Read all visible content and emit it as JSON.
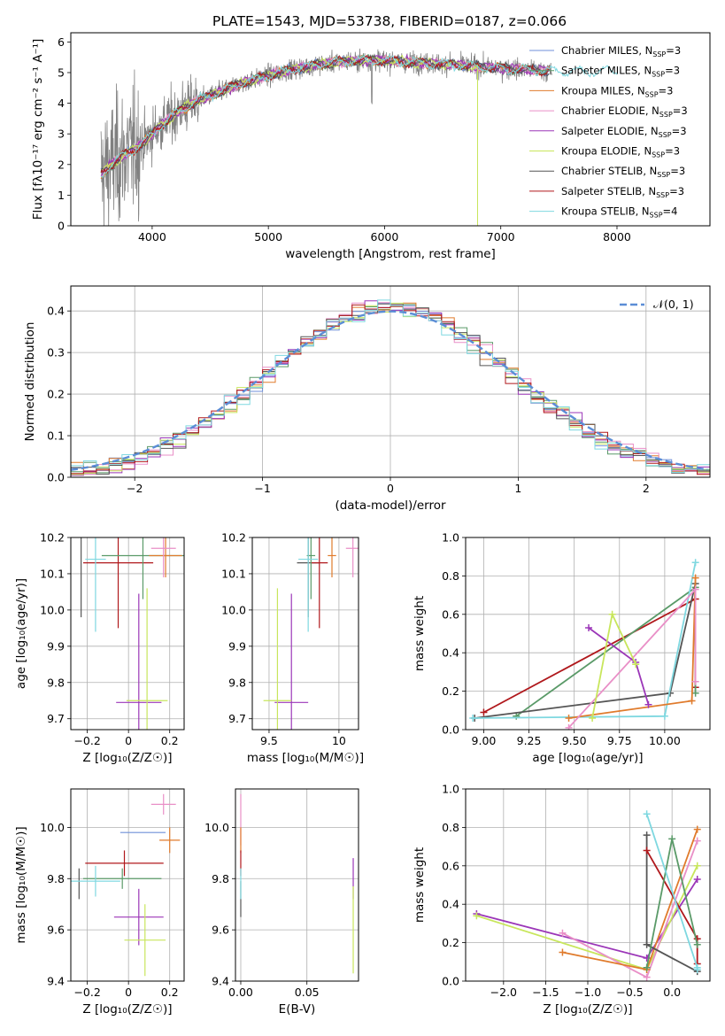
{
  "figure_title": "PLATE=1543, MJD=53738, FIBERID=0187, z=0.066",
  "colors": {
    "Chabrier MILES": "#6f8fd8",
    "Salpeter MILES": "#5a9a68",
    "Kroupa MILES": "#e07b2c",
    "Chabrier ELODIE": "#e98fc7",
    "Salpeter ELODIE": "#9b36b8",
    "Kroupa ELODIE": "#c8e65c",
    "Chabrier STELIB": "#555555",
    "Salpeter STELIB": "#b0181c",
    "Kroupa STELIB": "#7fd8e0",
    "data": "#808080",
    "normal": "#5b8dd6"
  },
  "chart_data": [
    {
      "type": "line",
      "name": "spectrum",
      "xlabel": "wavelength [Angstrom, rest frame]",
      "ylabel": "Flux [fλ10⁻¹⁷ erg cm⁻² s⁻¹ A⁻¹]",
      "xlim": [
        3300,
        8800
      ],
      "ylim": [
        0,
        6.3
      ],
      "xticks": [
        4000,
        5000,
        6000,
        7000,
        8000
      ],
      "yticks": [
        0,
        1,
        2,
        3,
        4,
        5,
        6
      ],
      "legend_position": "right",
      "legend": [
        {
          "model": "Chabrier MILES",
          "label": "Chabrier MILES, N",
          "sub": "SSP",
          "tail": "=3"
        },
        {
          "model": "Salpeter MILES",
          "label": "Salpeter MILES, N",
          "sub": "SSP",
          "tail": "=3"
        },
        {
          "model": "Kroupa MILES",
          "label": "Kroupa MILES, N",
          "sub": "SSP",
          "tail": "=3"
        },
        {
          "model": "Chabrier ELODIE",
          "label": "Chabrier ELODIE, N",
          "sub": "SSP",
          "tail": "=3"
        },
        {
          "model": "Salpeter ELODIE",
          "label": "Salpeter ELODIE, N",
          "sub": "SSP",
          "tail": "=3"
        },
        {
          "model": "Kroupa ELODIE",
          "label": "Kroupa ELODIE, N",
          "sub": "SSP",
          "tail": "=3"
        },
        {
          "model": "Chabrier STELIB",
          "label": "Chabrier STELIB, N",
          "sub": "SSP",
          "tail": "=3"
        },
        {
          "model": "Salpeter STELIB",
          "label": "Salpeter STELIB, N",
          "sub": "SSP",
          "tail": "=3"
        },
        {
          "model": "Kroupa STELIB",
          "label": "Kroupa STELIB, N",
          "sub": "SSP",
          "tail": "=4"
        }
      ],
      "continuum": [
        [
          3560,
          1.7
        ],
        [
          3650,
          2.0
        ],
        [
          3750,
          2.3
        ],
        [
          3850,
          2.5
        ],
        [
          3950,
          2.8
        ],
        [
          4050,
          3.2
        ],
        [
          4150,
          3.5
        ],
        [
          4250,
          3.8
        ],
        [
          4400,
          4.1
        ],
        [
          4600,
          4.4
        ],
        [
          4800,
          4.7
        ],
        [
          5000,
          4.9
        ],
        [
          5200,
          5.1
        ],
        [
          5400,
          5.25
        ],
        [
          5600,
          5.35
        ],
        [
          5800,
          5.4
        ],
        [
          6000,
          5.4
        ],
        [
          6200,
          5.35
        ],
        [
          6400,
          5.3
        ],
        [
          6600,
          5.25
        ],
        [
          6800,
          5.2
        ],
        [
          7000,
          5.15
        ],
        [
          7200,
          5.1
        ],
        [
          7400,
          5.05
        ]
      ],
      "model_extent": {
        "Kroupa ELODIE": 6800,
        "Salpeter STELIB": 7420,
        "Kroupa MILES": 7420,
        "Kroupa STELIB": 8000
      }
    },
    {
      "type": "step",
      "name": "residual-distribution",
      "xlabel": "(data-model)/error",
      "ylabel": "Normed distribution",
      "xlim": [
        -2.5,
        2.5
      ],
      "ylim": [
        0,
        0.46
      ],
      "xticks": [
        -2,
        -1,
        0,
        1,
        2
      ],
      "xtick_labels": [
        "−2",
        "−1",
        "0",
        "1",
        "2"
      ],
      "yticks": [
        0.0,
        0.1,
        0.2,
        0.3,
        0.4
      ],
      "bin_width": 0.1,
      "legend_label": "𝒩(0, 1)",
      "legend_position": "top-right"
    },
    {
      "type": "errorbar",
      "name": "Z-vs-age",
      "xlabel": "Z [log₁₀(Z/Z☉)]",
      "ylabel": "age  [log₁₀(age/yr)]",
      "xlim": [
        -0.28,
        0.27
      ],
      "ylim": [
        9.67,
        10.2
      ],
      "xticks": [
        -0.2,
        0.0,
        0.2
      ],
      "yticks": [
        9.7,
        9.8,
        9.9,
        10.0,
        10.1,
        10.2
      ],
      "points": [
        {
          "model": "Chabrier STELIB",
          "x": -0.23,
          "y": 10.13,
          "xerr": 0.0,
          "yerr": 0.15
        },
        {
          "model": "Salpeter STELIB",
          "x": -0.05,
          "y": 10.13,
          "xerr": 0.17,
          "yerr": 0.18
        },
        {
          "model": "Salpeter MILES",
          "x": 0.07,
          "y": 10.15,
          "xerr": 0.2,
          "yerr": 0.12
        },
        {
          "model": "Kroupa MILES",
          "x": 0.18,
          "y": 10.15,
          "xerr": 0.08,
          "yerr": 0.06
        },
        {
          "model": "Chabrier ELODIE",
          "x": 0.17,
          "y": 10.17,
          "xerr": 0.06,
          "yerr": 0.08
        },
        {
          "model": "Kroupa STELIB",
          "x": -0.16,
          "y": 10.14,
          "xerr": 0.05,
          "yerr": 0.2
        },
        {
          "model": "Salpeter ELODIE",
          "x": 0.05,
          "y": 9.745,
          "xerr": 0.11,
          "yerr": 0.3
        },
        {
          "model": "Kroupa ELODIE",
          "x": 0.09,
          "y": 9.75,
          "xerr": 0.1,
          "yerr": 0.31
        }
      ]
    },
    {
      "type": "errorbar",
      "name": "mass-vs-age",
      "xlabel": "mass [log₁₀(M/M☉)]",
      "ylabel": "",
      "xlim": [
        9.38,
        10.14
      ],
      "ylim": [
        9.67,
        10.2
      ],
      "xticks": [
        9.5,
        10.0
      ],
      "yticks": [
        9.7,
        9.8,
        9.9,
        10.0,
        10.1,
        10.2
      ],
      "points": [
        {
          "model": "Chabrier STELIB",
          "x": 9.78,
          "y": 10.13,
          "xerr": 0.08,
          "yerr": 0.15
        },
        {
          "model": "Salpeter STELIB",
          "x": 9.86,
          "y": 10.13,
          "xerr": 0.06,
          "yerr": 0.18
        },
        {
          "model": "Salpeter MILES",
          "x": 9.8,
          "y": 10.15,
          "xerr": 0.03,
          "yerr": 0.12
        },
        {
          "model": "Kroupa MILES",
          "x": 9.95,
          "y": 10.15,
          "xerr": 0.03,
          "yerr": 0.06
        },
        {
          "model": "Chabrier ELODIE",
          "x": 10.1,
          "y": 10.17,
          "xerr": 0.05,
          "yerr": 0.08
        },
        {
          "model": "Kroupa STELIB",
          "x": 9.78,
          "y": 10.14,
          "xerr": 0.07,
          "yerr": 0.2
        },
        {
          "model": "Salpeter ELODIE",
          "x": 9.66,
          "y": 9.745,
          "xerr": 0.12,
          "yerr": 0.3
        },
        {
          "model": "Kroupa ELODIE",
          "x": 9.56,
          "y": 9.75,
          "xerr": 0.1,
          "yerr": 0.31
        }
      ]
    },
    {
      "type": "line",
      "name": "age-vs-mass-weight",
      "xlabel": "age  [log₁₀(age/yr)]",
      "ylabel": "mass weight",
      "xlim": [
        8.9,
        10.25
      ],
      "ylim": [
        0,
        1
      ],
      "xticks": [
        9.0,
        9.25,
        9.5,
        9.75,
        10.0
      ],
      "xtick_labels": [
        "9.00",
        "9.25",
        "9.50",
        "9.75",
        "10.00"
      ],
      "yticks": [
        0.0,
        0.2,
        0.4,
        0.6,
        0.8,
        1.0
      ],
      "series": [
        {
          "model": "Salpeter STELIB",
          "x": [
            9.0,
            10.17,
            10.17
          ],
          "y": [
            0.09,
            0.68,
            0.22
          ]
        },
        {
          "model": "Salpeter MILES",
          "x": [
            9.18,
            10.17,
            10.17
          ],
          "y": [
            0.07,
            0.74,
            0.19
          ]
        },
        {
          "model": "Chabrier STELIB",
          "x": [
            8.95,
            10.03,
            10.17
          ],
          "y": [
            0.06,
            0.19,
            0.76
          ]
        },
        {
          "model": "Kroupa STELIB",
          "x": [
            8.94,
            10.0,
            10.17
          ],
          "y": [
            0.06,
            0.07,
            0.87
          ]
        },
        {
          "model": "Kroupa MILES",
          "x": [
            9.47,
            10.15,
            10.17
          ],
          "y": [
            0.06,
            0.15,
            0.79
          ]
        },
        {
          "model": "Chabrier ELODIE",
          "x": [
            9.47,
            10.17,
            10.17
          ],
          "y": [
            0.01,
            0.73,
            0.25
          ]
        },
        {
          "model": "Salpeter ELODIE",
          "x": [
            9.58,
            9.84,
            9.91
          ],
          "y": [
            0.53,
            0.35,
            0.13
          ]
        },
        {
          "model": "Kroupa ELODIE",
          "x": [
            9.6,
            9.71,
            9.84
          ],
          "y": [
            0.06,
            0.6,
            0.34
          ]
        }
      ]
    },
    {
      "type": "errorbar",
      "name": "Z-vs-mass",
      "xlabel": "Z [log₁₀(Z/Z☉)]",
      "ylabel": "mass [log₁₀(M/M☉)]",
      "xlim": [
        -0.28,
        0.27
      ],
      "ylim": [
        9.4,
        10.15
      ],
      "xticks": [
        -0.2,
        0.0,
        0.2
      ],
      "yticks": [
        9.4,
        9.6,
        9.8,
        10.0
      ],
      "points": [
        {
          "model": "Chabrier STELIB",
          "x": -0.24,
          "y": 9.78,
          "xerr": 0.0,
          "yerr": 0.06
        },
        {
          "model": "Salpeter STELIB",
          "x": -0.02,
          "y": 9.86,
          "xerr": 0.19,
          "yerr": 0.05
        },
        {
          "model": "Salpeter MILES",
          "x": -0.03,
          "y": 9.8,
          "xerr": 0.19,
          "yerr": 0.04
        },
        {
          "model": "Kroupa MILES",
          "x": 0.2,
          "y": 9.95,
          "xerr": 0.05,
          "yerr": 0.05
        },
        {
          "model": "Chabrier ELODIE",
          "x": 0.17,
          "y": 10.09,
          "xerr": 0.06,
          "yerr": 0.04
        },
        {
          "model": "Chabrier MILES",
          "x": 0.07,
          "y": 9.98,
          "xerr": 0.11,
          "yerr": 0.0
        },
        {
          "model": "Kroupa STELIB",
          "x": -0.16,
          "y": 9.79,
          "xerr": 0.12,
          "yerr": 0.06
        },
        {
          "model": "Salpeter ELODIE",
          "x": 0.05,
          "y": 9.65,
          "xerr": 0.12,
          "yerr": 0.11
        },
        {
          "model": "Kroupa ELODIE",
          "x": 0.08,
          "y": 9.56,
          "xerr": 0.1,
          "yerr": 0.14
        }
      ]
    },
    {
      "type": "errorbar",
      "name": "EBV-vs-mass",
      "xlabel": "E(B-V)",
      "ylabel": "",
      "xlim": [
        -0.004,
        0.089
      ],
      "ylim": [
        9.4,
        10.15
      ],
      "xticks": [
        0.0,
        0.05
      ],
      "xtick_labels": [
        "0.00",
        "0.05"
      ],
      "yticks": [
        9.4,
        9.6,
        9.8,
        10.0
      ],
      "points": [
        {
          "model": "Chabrier ELODIE",
          "x": 0.0,
          "y": 10.03,
          "xerr": 0.0,
          "yerr": 0.1
        },
        {
          "model": "Kroupa MILES",
          "x": 0.0,
          "y": 9.95,
          "xerr": 0.0,
          "yerr": 0.05
        },
        {
          "model": "Salpeter STELIB",
          "x": 0.0,
          "y": 9.86,
          "xerr": 0.0,
          "yerr": 0.05
        },
        {
          "model": "Chabrier STELIB",
          "x": 0.0,
          "y": 9.72,
          "xerr": 0.0,
          "yerr": 0.07
        },
        {
          "model": "Kroupa STELIB",
          "x": 0.0,
          "y": 9.78,
          "xerr": 0.0,
          "yerr": 0.06
        },
        {
          "model": "Salpeter ELODIE",
          "x": 0.085,
          "y": 9.8,
          "xerr": 0.0,
          "yerr": 0.08
        },
        {
          "model": "Kroupa ELODIE",
          "x": 0.085,
          "y": 9.6,
          "xerr": 0.0,
          "yerr": 0.17
        }
      ]
    },
    {
      "type": "line",
      "name": "Z-vs-mass-weight",
      "xlabel": "Z [log₁₀(Z/Z☉)]",
      "ylabel": "mass weight",
      "xlim": [
        -2.45,
        0.45
      ],
      "ylim": [
        0,
        1
      ],
      "xticks": [
        -2.0,
        -1.5,
        -1.0,
        -0.5,
        0.0
      ],
      "xtick_labels": [
        "−2.0",
        "−1.5",
        "−1.0",
        "−0.5",
        "0.0"
      ],
      "yticks": [
        0.0,
        0.2,
        0.4,
        0.6,
        0.8,
        1.0
      ],
      "series": [
        {
          "model": "Salpeter ELODIE",
          "x": [
            -2.32,
            -0.3,
            0.3
          ],
          "y": [
            0.35,
            0.12,
            0.53
          ]
        },
        {
          "model": "Kroupa ELODIE",
          "x": [
            -2.32,
            -0.3,
            0.3
          ],
          "y": [
            0.34,
            0.06,
            0.6
          ]
        },
        {
          "model": "Chabrier ELODIE",
          "x": [
            -1.3,
            -0.3,
            0.3
          ],
          "y": [
            0.25,
            0.02,
            0.73
          ]
        },
        {
          "model": "Kroupa MILES",
          "x": [
            -1.3,
            -0.3,
            0.3
          ],
          "y": [
            0.15,
            0.06,
            0.79
          ]
        },
        {
          "model": "Chabrier STELIB",
          "x": [
            -0.3,
            -0.3,
            0.3
          ],
          "y": [
            0.76,
            0.19,
            0.05
          ]
        },
        {
          "model": "Salpeter STELIB",
          "x": [
            -0.3,
            0.3,
            0.3
          ],
          "y": [
            0.68,
            0.22,
            0.09
          ]
        },
        {
          "model": "Salpeter MILES",
          "x": [
            -0.3,
            0.0,
            0.3
          ],
          "y": [
            0.07,
            0.74,
            0.19
          ]
        },
        {
          "model": "Kroupa STELIB",
          "x": [
            -0.3,
            0.3,
            0.3
          ],
          "y": [
            0.87,
            0.07,
            0.06
          ]
        }
      ]
    }
  ]
}
